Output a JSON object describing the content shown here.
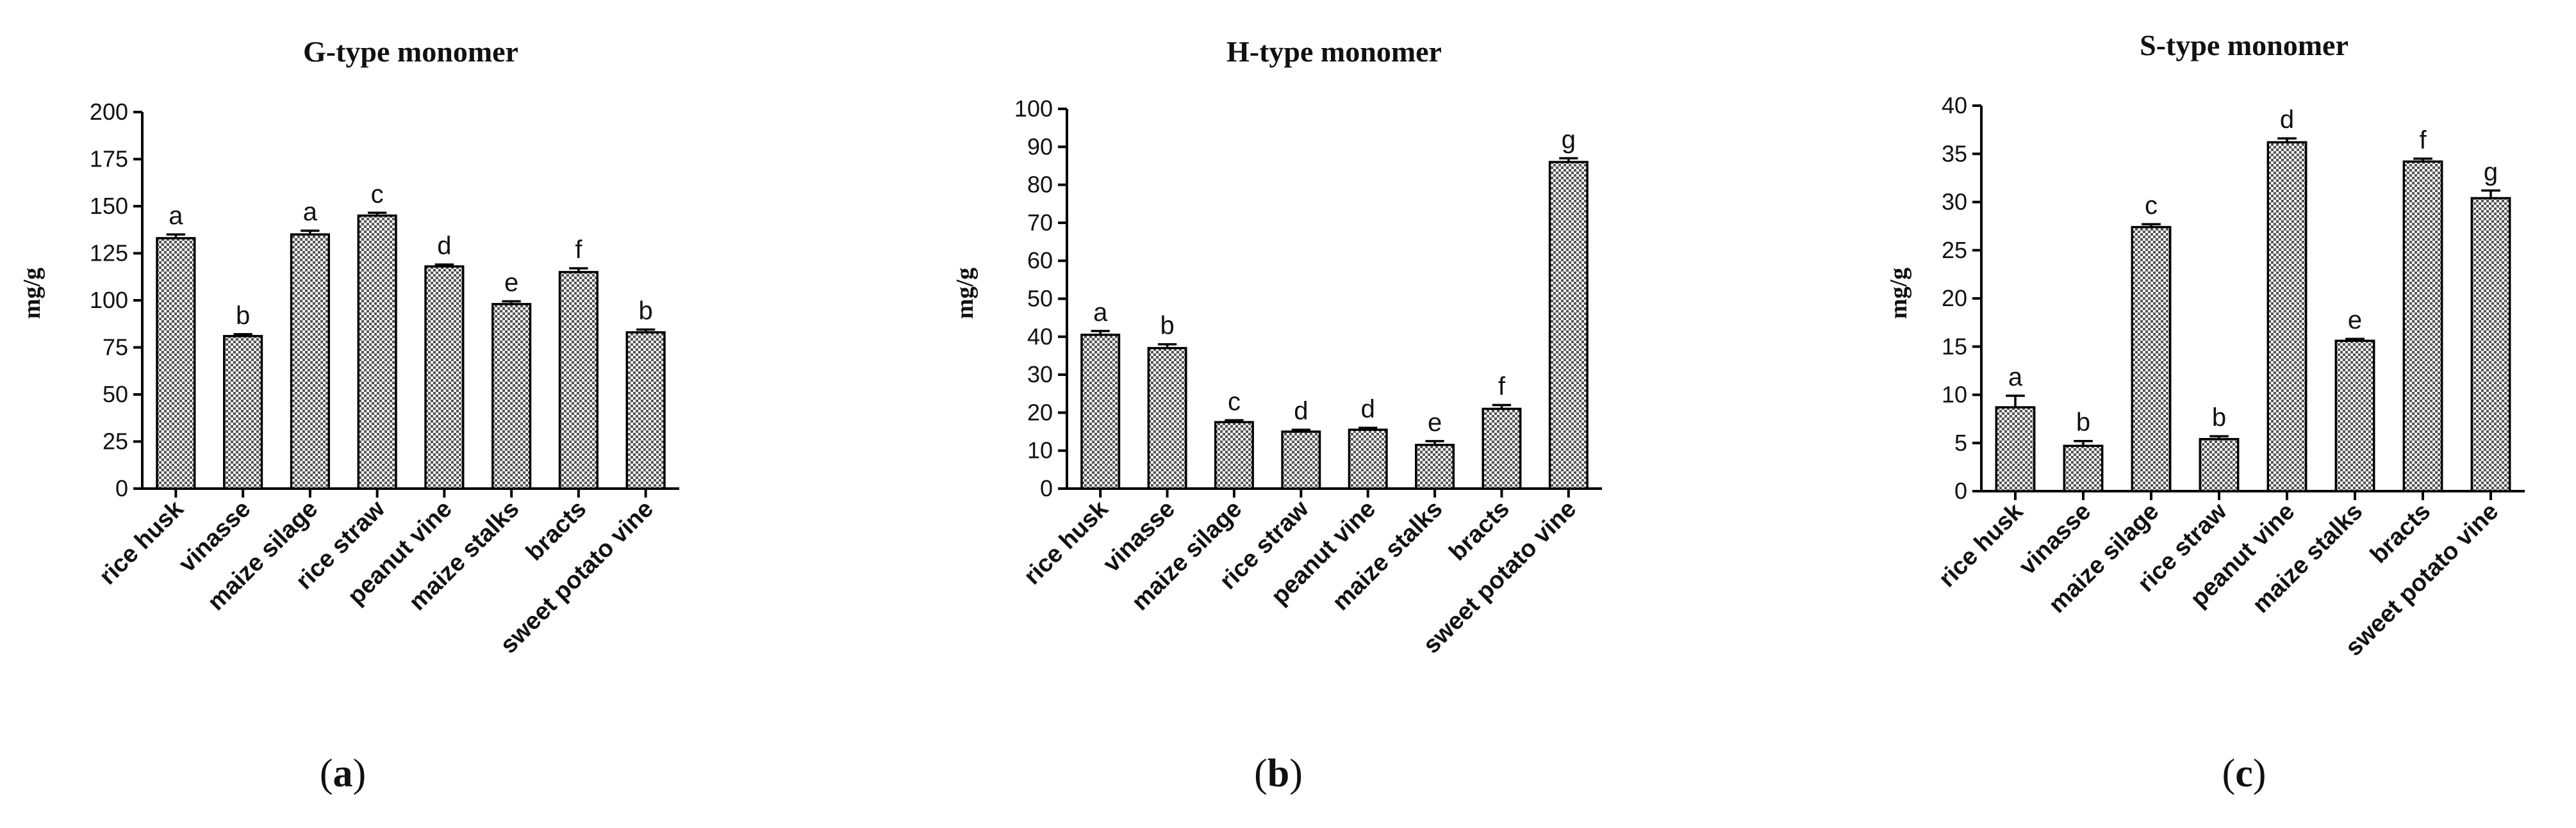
{
  "chart_data": [
    {
      "type": "bar",
      "title": "G-type monomer",
      "ylabel": "mg/g",
      "panel_letter": "a",
      "ylim": [
        0,
        200
      ],
      "yticks": [
        0,
        25,
        50,
        75,
        100,
        125,
        150,
        175,
        200
      ],
      "categories": [
        "rice husk",
        "vinasse",
        "maize silage",
        "rice straw",
        "peanut vine",
        "maize stalks",
        "bracts",
        "sweet potato vine"
      ],
      "values": [
        133,
        81,
        135,
        145,
        118,
        98,
        115,
        83
      ],
      "errors": [
        2,
        1,
        2,
        1.5,
        1,
        1.5,
        2,
        1.5
      ],
      "labels": [
        "a",
        "b",
        "a",
        "c",
        "d",
        "e",
        "f",
        "b"
      ]
    },
    {
      "type": "bar",
      "title": "H-type monomer",
      "ylabel": "mg/g",
      "panel_letter": "b",
      "ylim": [
        0,
        100
      ],
      "yticks": [
        0,
        10,
        20,
        30,
        40,
        50,
        60,
        70,
        80,
        90,
        100
      ],
      "categories": [
        "rice husk",
        "vinasse",
        "maize silage",
        "rice straw",
        "peanut vine",
        "maize stalks",
        "bracts",
        "sweet potato vine"
      ],
      "values": [
        40.5,
        37,
        17.5,
        15,
        15.5,
        11.5,
        21,
        86
      ],
      "errors": [
        1,
        1,
        0.5,
        0.5,
        0.5,
        1,
        1,
        1
      ],
      "labels": [
        "a",
        "b",
        "c",
        "d",
        "d",
        "e",
        "f",
        "g"
      ]
    },
    {
      "type": "bar",
      "title": "S-type monomer",
      "ylabel": "mg/g",
      "panel_letter": "c",
      "ylim": [
        0,
        40
      ],
      "yticks": [
        0,
        5,
        10,
        15,
        20,
        25,
        30,
        35,
        40
      ],
      "categories": [
        "rice husk",
        "vinasse",
        "maize silage",
        "rice straw",
        "peanut vine",
        "maize stalks",
        "bracts",
        "sweet potato vine"
      ],
      "values": [
        8.7,
        4.7,
        27.4,
        5.4,
        36.2,
        15.6,
        34.2,
        30.4
      ],
      "errors": [
        1.2,
        0.5,
        0.3,
        0.3,
        0.4,
        0.2,
        0.3,
        0.8
      ],
      "labels": [
        "a",
        "b",
        "c",
        "b",
        "d",
        "e",
        "f",
        "g"
      ]
    }
  ]
}
